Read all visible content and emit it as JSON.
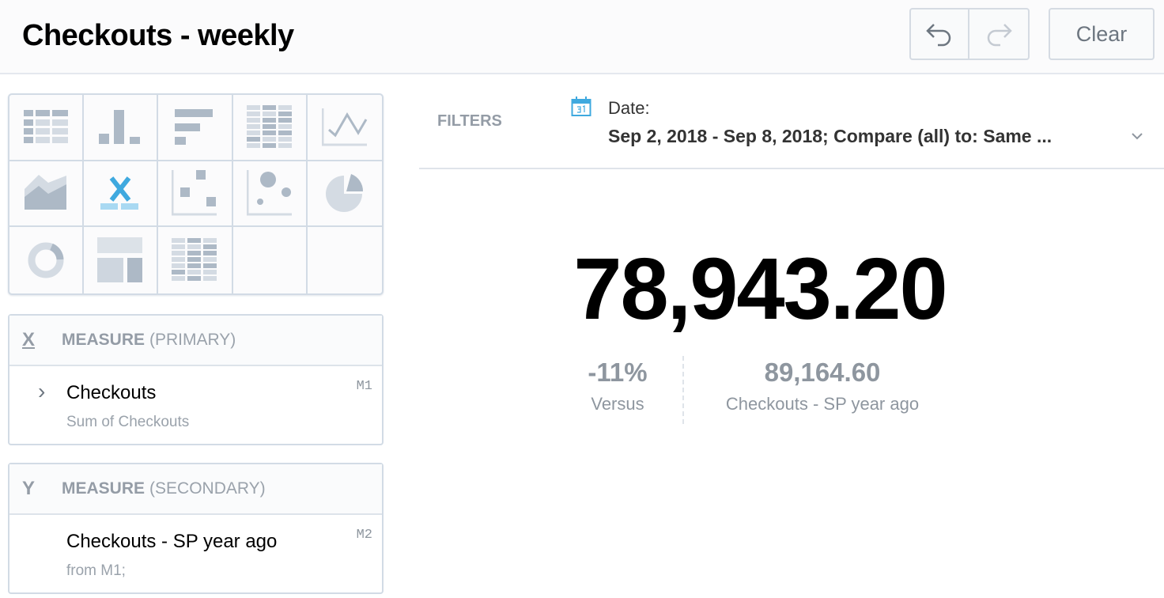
{
  "header": {
    "title": "Checkouts - weekly",
    "undo_icon": "undo-icon",
    "redo_icon": "redo-icon",
    "clear_label": "Clear"
  },
  "visualization_types": [
    "table",
    "column-chart",
    "bar-chart",
    "heatmap",
    "line-chart",
    "area-chart",
    "headline",
    "scatter-plot",
    "bubble-chart",
    "pie-chart",
    "donut-chart",
    "treemap",
    "pivot-table"
  ],
  "selected_visualization": "headline",
  "accent_color": "#3fa9df",
  "measures": [
    {
      "section_letter": "X",
      "section_title": "MEASURE",
      "section_qualifier": "(PRIMARY)",
      "name": "Checkouts",
      "sub": "Sum of Checkouts",
      "id": "M1"
    },
    {
      "section_letter": "Y",
      "section_title": "MEASURE",
      "section_qualifier": "(SECONDARY)",
      "name": "Checkouts - SP year ago",
      "sub": "from M1;",
      "id": "M2"
    }
  ],
  "filters": {
    "label": "FILTERS",
    "date_label": "Date:",
    "date_value": "Sep 2, 2018 - Sep 8, 2018; Compare (all) to: Same ..."
  },
  "headline": {
    "primary": "78,943.20",
    "change": "-11%",
    "change_label": "Versus",
    "secondary": "89,164.60",
    "secondary_label": "Checkouts - SP year ago"
  }
}
